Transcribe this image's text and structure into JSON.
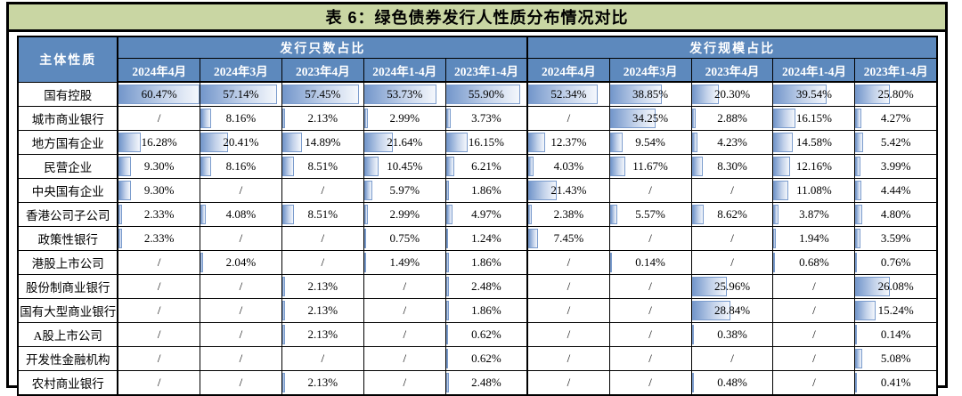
{
  "colors": {
    "title_bg": "#c9d6a3",
    "header_bg": "#5d89bd",
    "header_text": "#ffffff",
    "bar_fill_left": "#7497cb",
    "bar_border": "#7b9ccd"
  },
  "chart_data": {
    "type": "table",
    "title": "表 6：绿色债券发行人性质分布情况对比",
    "row_header": "主体性质",
    "column_groups": [
      "发行只数占比",
      "发行规模占比"
    ],
    "period_columns": [
      "2024年4月",
      "2024年3月",
      "2023年4月",
      "2024年1-4月",
      "2023年1-4月"
    ],
    "bar_max_percent": 60.47,
    "rows": [
      {
        "label": "国有控股",
        "issue_count_share": [
          "60.47%",
          "57.14%",
          "57.45%",
          "53.73%",
          "55.90%"
        ],
        "issue_scale_share": [
          "52.34%",
          "38.85%",
          "20.30%",
          "39.54%",
          "25.80%"
        ]
      },
      {
        "label": "城市商业银行",
        "issue_count_share": [
          "/",
          "8.16%",
          "2.13%",
          "2.99%",
          "3.73%"
        ],
        "issue_scale_share": [
          "/",
          "34.25%",
          "2.88%",
          "16.15%",
          "4.27%"
        ]
      },
      {
        "label": "地方国有企业",
        "issue_count_share": [
          "16.28%",
          "20.41%",
          "14.89%",
          "21.64%",
          "16.15%"
        ],
        "issue_scale_share": [
          "12.37%",
          "9.54%",
          "4.23%",
          "14.58%",
          "5.42%"
        ]
      },
      {
        "label": "民营企业",
        "issue_count_share": [
          "9.30%",
          "8.16%",
          "8.51%",
          "10.45%",
          "6.21%"
        ],
        "issue_scale_share": [
          "4.03%",
          "11.67%",
          "8.30%",
          "12.16%",
          "3.99%"
        ]
      },
      {
        "label": "中央国有企业",
        "issue_count_share": [
          "9.30%",
          "/",
          "/",
          "5.97%",
          "1.86%"
        ],
        "issue_scale_share": [
          "21.43%",
          "/",
          "/",
          "11.08%",
          "4.44%"
        ]
      },
      {
        "label": "香港公司子公司",
        "issue_count_share": [
          "2.33%",
          "4.08%",
          "8.51%",
          "2.99%",
          "4.97%"
        ],
        "issue_scale_share": [
          "2.38%",
          "5.57%",
          "8.62%",
          "3.87%",
          "4.80%"
        ]
      },
      {
        "label": "政策性银行",
        "issue_count_share": [
          "2.33%",
          "/",
          "/",
          "0.75%",
          "1.24%"
        ],
        "issue_scale_share": [
          "7.45%",
          "/",
          "/",
          "1.94%",
          "3.59%"
        ]
      },
      {
        "label": "港股上市公司",
        "issue_count_share": [
          "/",
          "2.04%",
          "/",
          "1.49%",
          "1.86%"
        ],
        "issue_scale_share": [
          "/",
          "0.14%",
          "/",
          "0.68%",
          "0.76%"
        ]
      },
      {
        "label": "股份制商业银行",
        "issue_count_share": [
          "/",
          "/",
          "2.13%",
          "/",
          "2.48%"
        ],
        "issue_scale_share": [
          "/",
          "/",
          "25.96%",
          "/",
          "26.08%"
        ]
      },
      {
        "label": "国有大型商业银行",
        "issue_count_share": [
          "/",
          "/",
          "2.13%",
          "/",
          "1.86%"
        ],
        "issue_scale_share": [
          "/",
          "/",
          "28.84%",
          "/",
          "15.24%"
        ]
      },
      {
        "label": "A股上市公司",
        "issue_count_share": [
          "/",
          "/",
          "2.13%",
          "/",
          "0.62%"
        ],
        "issue_scale_share": [
          "/",
          "/",
          "0.38%",
          "/",
          "0.14%"
        ]
      },
      {
        "label": "开发性金融机构",
        "issue_count_share": [
          "/",
          "/",
          "/",
          "/",
          "0.62%"
        ],
        "issue_scale_share": [
          "/",
          "/",
          "/",
          "/",
          "5.08%"
        ]
      },
      {
        "label": "农村商业银行",
        "issue_count_share": [
          "/",
          "/",
          "2.13%",
          "/",
          "2.48%"
        ],
        "issue_scale_share": [
          "/",
          "/",
          "0.48%",
          "/",
          "0.41%"
        ]
      }
    ]
  }
}
